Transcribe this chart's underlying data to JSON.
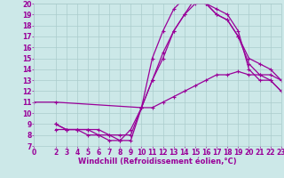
{
  "bg_color": "#cce8e8",
  "grid_color": "#aacccc",
  "line_color": "#990099",
  "marker": "+",
  "markersize": 3.5,
  "linewidth": 0.9,
  "xlabel": "Windchill (Refroidissement éolien,°C)",
  "xlabel_fontsize": 6,
  "tick_fontsize": 5.5,
  "xlim": [
    0,
    23
  ],
  "ylim": [
    7,
    20
  ],
  "yticks": [
    7,
    8,
    9,
    10,
    11,
    12,
    13,
    14,
    15,
    16,
    17,
    18,
    19,
    20
  ],
  "xticks": [
    0,
    2,
    3,
    4,
    5,
    6,
    7,
    8,
    9,
    10,
    11,
    12,
    13,
    14,
    15,
    16,
    17,
    18,
    19,
    20,
    21,
    22,
    23
  ],
  "series": [
    {
      "x": [
        0,
        2,
        10,
        11,
        12,
        13,
        14,
        15,
        16,
        17,
        18,
        19,
        20,
        21,
        22,
        23
      ],
      "y": [
        11,
        11,
        10.5,
        10.5,
        11,
        11.5,
        12,
        12.5,
        13,
        13.5,
        13.5,
        13.8,
        13.5,
        13.5,
        13.5,
        13
      ]
    },
    {
      "x": [
        2,
        3,
        4,
        5,
        6,
        7,
        8,
        9,
        10,
        11,
        12,
        13,
        14,
        15,
        16,
        17,
        18,
        19,
        20,
        21,
        22,
        23
      ],
      "y": [
        8.5,
        8.5,
        8.5,
        8.0,
        8.0,
        7.5,
        7.5,
        8.5,
        10.5,
        13,
        15,
        17.5,
        19,
        20,
        20,
        19,
        18.5,
        17,
        15,
        14.5,
        14,
        13
      ]
    },
    {
      "x": [
        2,
        3,
        4,
        5,
        6,
        7,
        8,
        9,
        10,
        11,
        12,
        13,
        14,
        15,
        16,
        17,
        18,
        19,
        20,
        21,
        22,
        23
      ],
      "y": [
        9,
        8.5,
        8.5,
        8.5,
        8.5,
        8.0,
        7.5,
        7.5,
        10.5,
        15,
        17.5,
        19.5,
        20.5,
        20.5,
        20,
        19,
        18.5,
        17,
        14.5,
        13.5,
        13,
        12
      ]
    },
    {
      "x": [
        2,
        3,
        4,
        5,
        6,
        7,
        8,
        9,
        10,
        11,
        12,
        13,
        14,
        15,
        16,
        17,
        18,
        19,
        20,
        21,
        22,
        23
      ],
      "y": [
        9,
        8.5,
        8.5,
        8.5,
        8.0,
        8.0,
        8.0,
        8.0,
        10.5,
        13,
        15.5,
        17.5,
        19,
        20.5,
        20.0,
        19.5,
        19,
        17.5,
        14,
        13,
        13,
        12
      ]
    }
  ]
}
